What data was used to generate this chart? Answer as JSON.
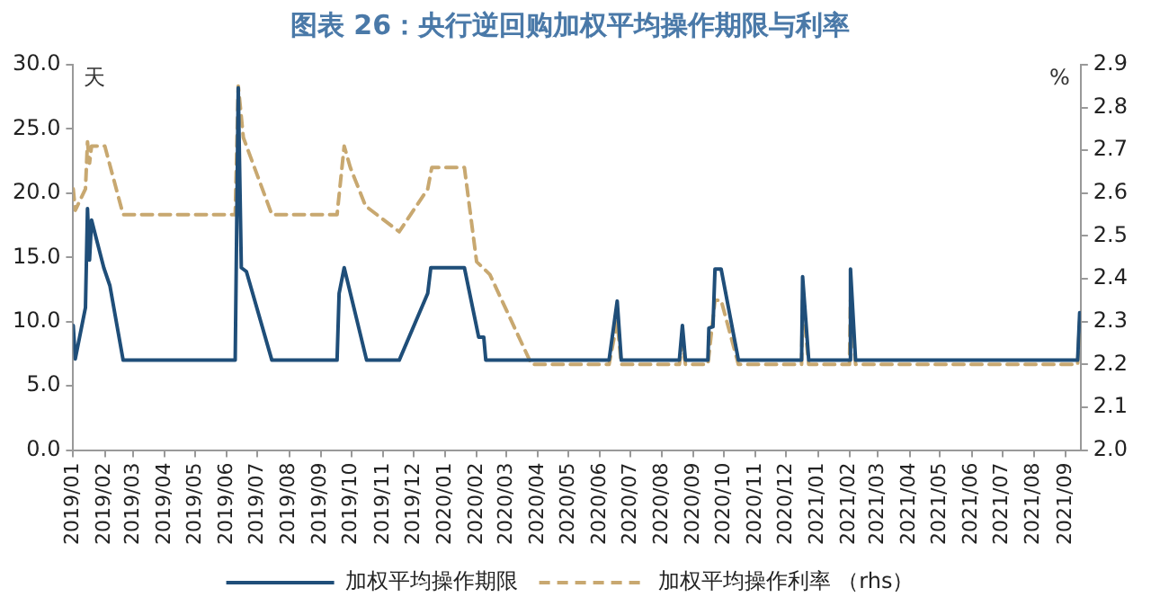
{
  "chart_data": {
    "type": "line",
    "title": "图表 26：央行逆回购加权平均操作期限与利率",
    "ylabel": "天",
    "y2label": "%",
    "series": [
      {
        "name": "加权平均操作期限",
        "color": "#1f4e79",
        "line_style": "solid",
        "x": [
          "2019-01-01",
          "2019-01-03",
          "2019-01-13",
          "2019-01-15",
          "2019-01-17",
          "2019-01-19",
          "2019-01-31",
          "2019-02-06",
          "2019-02-19",
          "2019-06-09",
          "2019-06-12",
          "2019-06-15",
          "2019-06-20",
          "2019-07-15",
          "2019-09-17",
          "2019-09-19",
          "2019-09-24",
          "2019-10-16",
          "2019-11-17",
          "2019-12-15",
          "2019-12-18",
          "2020-01-20",
          "2020-02-03",
          "2020-02-08",
          "2020-02-10",
          "2020-06-10",
          "2020-06-18",
          "2020-06-22",
          "2020-08-18",
          "2020-08-21",
          "2020-08-24",
          "2020-09-15",
          "2020-09-16",
          "2020-09-20",
          "2020-09-22",
          "2020-09-28",
          "2020-10-15",
          "2020-12-16",
          "2020-12-17",
          "2020-12-23",
          "2021-02-01",
          "2021-02-02",
          "2021-02-07",
          "2021-09-13",
          "2021-09-15"
        ],
        "values": [
          9.7,
          7.1,
          11.1,
          18.8,
          14.8,
          17.9,
          14.2,
          12.8,
          7.0,
          7.0,
          28.2,
          14.2,
          13.9,
          7.0,
          7.0,
          12.2,
          14.2,
          7.0,
          7.0,
          12.2,
          14.2,
          14.2,
          8.8,
          8.8,
          7.0,
          7.0,
          11.6,
          7.0,
          7.0,
          9.7,
          7.0,
          7.0,
          9.5,
          9.6,
          14.1,
          14.1,
          7.0,
          7.0,
          13.5,
          7.0,
          7.0,
          14.1,
          7.0,
          7.0,
          10.7
        ]
      },
      {
        "name": "加权平均操作利率 （rhs）",
        "color": "#c8a870",
        "line_style": "dashed",
        "axis": "y2",
        "x": [
          "2019-01-01",
          "2019-01-03",
          "2019-01-13",
          "2019-01-15",
          "2019-01-17",
          "2019-01-19",
          "2019-02-01",
          "2019-02-19",
          "2019-06-09",
          "2019-06-12",
          "2019-06-17",
          "2019-07-15",
          "2019-09-17",
          "2019-09-24",
          "2019-09-30",
          "2019-10-15",
          "2019-11-17",
          "2019-12-15",
          "2019-12-19",
          "2020-01-20",
          "2020-02-01",
          "2020-02-14",
          "2020-03-26",
          "2020-06-10",
          "2020-06-18",
          "2020-06-22",
          "2020-08-18",
          "2020-08-21",
          "2020-08-24",
          "2020-09-15",
          "2020-09-22",
          "2020-09-28",
          "2020-10-15",
          "2020-12-16",
          "2020-12-17",
          "2020-12-23",
          "2021-02-01",
          "2021-02-02",
          "2021-02-07",
          "2021-09-13",
          "2021-09-15"
        ],
        "values": [
          2.61,
          2.56,
          2.61,
          2.72,
          2.67,
          2.71,
          2.71,
          2.55,
          2.55,
          2.85,
          2.73,
          2.55,
          2.55,
          2.71,
          2.66,
          2.57,
          2.51,
          2.61,
          2.66,
          2.66,
          2.44,
          2.41,
          2.2,
          2.2,
          2.3,
          2.2,
          2.2,
          2.25,
          2.2,
          2.2,
          2.35,
          2.35,
          2.2,
          2.2,
          2.35,
          2.2,
          2.2,
          2.35,
          2.2,
          2.2,
          2.3
        ]
      }
    ],
    "xlim": [
      "2019-01-01",
      "2021-09-16"
    ],
    "xticks": [
      {
        "value": "2019-01",
        "label": "2019/01"
      },
      {
        "value": "2019-02",
        "label": "2019/02"
      },
      {
        "value": "2019-03",
        "label": "2019/03"
      },
      {
        "value": "2019-04",
        "label": "2019/04"
      },
      {
        "value": "2019-05",
        "label": "2019/05"
      },
      {
        "value": "2019-06",
        "label": "2019/06"
      },
      {
        "value": "2019-07",
        "label": "2019/07"
      },
      {
        "value": "2019-08",
        "label": "2019/08"
      },
      {
        "value": "2019-09",
        "label": "2019/09"
      },
      {
        "value": "2019-10",
        "label": "2019/10"
      },
      {
        "value": "2019-11",
        "label": "2019/11"
      },
      {
        "value": "2019-12",
        "label": "2019/12"
      },
      {
        "value": "2020-01",
        "label": "2020/01"
      },
      {
        "value": "2020-02",
        "label": "2020/02"
      },
      {
        "value": "2020-03",
        "label": "2020/03"
      },
      {
        "value": "2020-04",
        "label": "2020/04"
      },
      {
        "value": "2020-05",
        "label": "2020/05"
      },
      {
        "value": "2020-06",
        "label": "2020/06"
      },
      {
        "value": "2020-07",
        "label": "2020/07"
      },
      {
        "value": "2020-08",
        "label": "2020/08"
      },
      {
        "value": "2020-09",
        "label": "2020/09"
      },
      {
        "value": "2020-10",
        "label": "2020/10"
      },
      {
        "value": "2020-11",
        "label": "2020/11"
      },
      {
        "value": "2020-12",
        "label": "2020/12"
      },
      {
        "value": "2021-01",
        "label": "2021/01"
      },
      {
        "value": "2021-02",
        "label": "2021/02"
      },
      {
        "value": "2021-03",
        "label": "2021/03"
      },
      {
        "value": "2021-04",
        "label": "2021/04"
      },
      {
        "value": "2021-05",
        "label": "2021/05"
      },
      {
        "value": "2021-06",
        "label": "2021/06"
      },
      {
        "value": "2021-07",
        "label": "2021/07"
      },
      {
        "value": "2021-08",
        "label": "2021/08"
      },
      {
        "value": "2021-09",
        "label": "2021/09"
      }
    ],
    "ylim": [
      0,
      30
    ],
    "yticks": [
      {
        "value": 0,
        "label": "0.0"
      },
      {
        "value": 5,
        "label": "5.0"
      },
      {
        "value": 10,
        "label": "10.0"
      },
      {
        "value": 15,
        "label": "15.0"
      },
      {
        "value": 20,
        "label": "20.0"
      },
      {
        "value": 25,
        "label": "25.0"
      },
      {
        "value": 30,
        "label": "30.0"
      }
    ],
    "y2lim": [
      2.0,
      2.9
    ],
    "y2ticks": [
      {
        "value": 2.0,
        "label": "2.0"
      },
      2.1,
      2.2,
      2.3,
      2.4,
      2.5,
      2.6,
      2.7,
      2.8,
      2.9
    ],
    "grid": false,
    "legend": "bottom",
    "marker": "none"
  }
}
